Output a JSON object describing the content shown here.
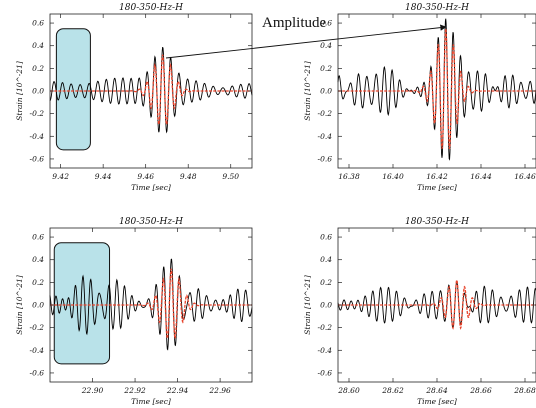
{
  "annotation": {
    "label": "Amplitude"
  },
  "colors": {
    "data": "#000000",
    "model": "#e8442c",
    "highlight_fill": "#b9e2e9",
    "highlight_stroke": "#111111"
  },
  "chart_data": [
    {
      "type": "line",
      "title": "180-350-Hz-H",
      "xlabel": "Time [sec]",
      "ylabel": "Strain [10^-21]",
      "xlim": [
        9.415,
        9.51
      ],
      "ylim": [
        -0.68,
        0.68
      ],
      "xticks": [
        "9.42",
        "9.44",
        "9.46",
        "9.48",
        "9.50"
      ],
      "xtick_values": [
        9.42,
        9.44,
        9.46,
        9.48,
        9.5
      ],
      "yticks": [
        "-0.6",
        "-0.4",
        "-0.2",
        "0.0",
        "0.2",
        "0.4",
        "0.6"
      ],
      "ytick_values": [
        -0.6,
        -0.4,
        -0.2,
        0.0,
        0.2,
        0.4,
        0.6
      ],
      "highlight_x": [
        9.418,
        9.434
      ],
      "series": [
        {
          "role": "data",
          "signal": {
            "center": 9.468,
            "amp": 0.35,
            "width": 0.0045,
            "freq": 270
          },
          "noise": {
            "amp": 0.11,
            "seed": 11
          }
        },
        {
          "role": "model",
          "signal": {
            "center": 9.468,
            "amp": 0.32,
            "width": 0.0045,
            "freq": 270
          }
        }
      ]
    },
    {
      "type": "line",
      "title": "180-350-Hz-H",
      "xlabel": "Time [sec]",
      "ylabel": "Strain [10^-21]",
      "xlim": [
        16.375,
        16.465
      ],
      "ylim": [
        -0.68,
        0.68
      ],
      "xticks": [
        "16.38",
        "16.40",
        "16.42",
        "16.44",
        "16.46"
      ],
      "xtick_values": [
        16.38,
        16.4,
        16.42,
        16.44,
        16.46
      ],
      "yticks": [
        "-0.6",
        "-0.4",
        "-0.2",
        "0.0",
        "0.2",
        "0.4",
        "0.6"
      ],
      "ytick_values": [
        -0.6,
        -0.4,
        -0.2,
        0.0,
        0.2,
        0.4,
        0.6
      ],
      "highlight_x": null,
      "series": [
        {
          "role": "data",
          "signal": {
            "center": 16.424,
            "amp": 0.62,
            "width": 0.0045,
            "freq": 290
          },
          "noise": {
            "amp": 0.12,
            "seed": 23
          }
        },
        {
          "role": "model",
          "signal": {
            "center": 16.424,
            "amp": 0.55,
            "width": 0.0045,
            "freq": 290
          }
        }
      ]
    },
    {
      "type": "line",
      "title": "180-350-Hz-H",
      "xlabel": "Time [sec]",
      "ylabel": "Strain [10^-21]",
      "xlim": [
        22.88,
        22.975
      ],
      "ylim": [
        -0.68,
        0.68
      ],
      "xticks": [
        "22.90",
        "22.92",
        "22.94",
        "22.96"
      ],
      "xtick_values": [
        22.9,
        22.92,
        22.94,
        22.96
      ],
      "yticks": [
        "-0.6",
        "-0.4",
        "-0.2",
        "0.0",
        "0.2",
        "0.4",
        "0.6"
      ],
      "ytick_values": [
        -0.6,
        -0.4,
        -0.2,
        0.0,
        0.2,
        0.4,
        0.6
      ],
      "highlight_x": [
        22.882,
        22.908
      ],
      "series": [
        {
          "role": "data",
          "signal": {
            "center": 22.937,
            "amp": 0.38,
            "width": 0.0045,
            "freq": 270
          },
          "noise": {
            "amp": 0.15,
            "seed": 37
          }
        },
        {
          "role": "model",
          "signal": {
            "center": 22.937,
            "amp": 0.32,
            "width": 0.0045,
            "freq": 270
          }
        }
      ]
    },
    {
      "type": "line",
      "title": "180-350-Hz-H",
      "xlabel": "Time [sec]",
      "ylabel": "Strain [10^-21]",
      "xlim": [
        28.595,
        28.685
      ],
      "ylim": [
        -0.68,
        0.68
      ],
      "xticks": [
        "28.60",
        "28.62",
        "28.64",
        "28.66",
        "28.68"
      ],
      "xtick_values": [
        28.6,
        28.62,
        28.64,
        28.66,
        28.68
      ],
      "yticks": [
        "-0.6",
        "-0.4",
        "-0.2",
        "0.0",
        "0.2",
        "0.4",
        "0.6"
      ],
      "ytick_values": [
        -0.6,
        -0.4,
        -0.2,
        0.0,
        0.2,
        0.4,
        0.6
      ],
      "highlight_x": null,
      "series": [
        {
          "role": "data",
          "signal": {
            "center": 28.649,
            "amp": 0.22,
            "width": 0.0045,
            "freq": 280
          },
          "noise": {
            "amp": 0.1,
            "seed": 53
          }
        },
        {
          "role": "model",
          "signal": {
            "center": 28.649,
            "amp": 0.22,
            "width": 0.0045,
            "freq": 280
          }
        }
      ]
    }
  ]
}
